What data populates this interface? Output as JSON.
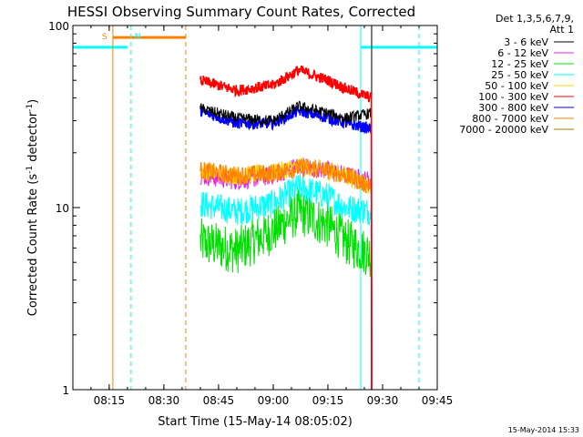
{
  "footer_timestamp": "15-May-2014 15:33",
  "chart_data": {
    "type": "line",
    "title": "HESSI Observing Summary Count Rates, Corrected",
    "xlabel": "Start Time (15-May-14 08:05:02)",
    "ylabel": "Corrected Count Rate (s^-1 detector^-1)",
    "ylabel_parts": [
      "Corrected Count Rate (s",
      "-1",
      " detector",
      "-1",
      ")"
    ],
    "y_scale": "log",
    "ylim": [
      1,
      100
    ],
    "xlim": [
      "08:05:02",
      "09:45:00"
    ],
    "x_ticks": [
      "08:15",
      "08:30",
      "08:45",
      "09:00",
      "09:15",
      "09:30",
      "09:45"
    ],
    "y_ticks": [
      "1",
      "10",
      "100"
    ],
    "grid": false,
    "legend_header": [
      "Det 1,3,5,6,7,9,",
      "Att 1"
    ],
    "legend_position": "right",
    "series": [
      {
        "name": "3 - 6 keV",
        "color": "#000000",
        "start": "08:40",
        "end": "09:27",
        "t": [
          "08:40",
          "08:50",
          "09:00",
          "09:07",
          "09:15",
          "09:20",
          "09:27"
        ],
        "y": [
          35,
          31,
          30,
          36,
          33,
          31,
          33
        ]
      },
      {
        "name": "6 - 12 keV",
        "color": "#e020e0",
        "start": "08:40",
        "end": "09:27",
        "t": [
          "08:40",
          "08:50",
          "09:00",
          "09:07",
          "09:15",
          "09:20",
          "09:27"
        ],
        "y": [
          15,
          14,
          15,
          17,
          16,
          15,
          14
        ]
      },
      {
        "name": "12 - 25 keV",
        "color": "#00e000",
        "start": "08:40",
        "end": "09:27",
        "t": [
          "08:40",
          "08:50",
          "09:00",
          "09:07",
          "09:15",
          "09:20",
          "09:27"
        ],
        "y": [
          6.5,
          5.8,
          7.5,
          9.5,
          8,
          6.5,
          5.5
        ]
      },
      {
        "name": "25 - 50 keV",
        "color": "#00ffff",
        "start": "08:40",
        "end": "09:27",
        "t": [
          "08:40",
          "08:50",
          "09:00",
          "09:07",
          "09:15",
          "09:20",
          "09:27"
        ],
        "y": [
          10.5,
          9.5,
          10.5,
          13,
          11.5,
          10,
          9.5
        ]
      },
      {
        "name": "50 - 100 keV",
        "color": "#ffd000",
        "start": "08:40",
        "end": "09:27",
        "t": [
          "08:40",
          "08:50",
          "09:00",
          "09:07",
          "09:15",
          "09:20",
          "09:27"
        ],
        "y": [
          16,
          15,
          15.5,
          17,
          16,
          15,
          13
        ]
      },
      {
        "name": "100 - 300 keV",
        "color": "#ff0000",
        "start": "08:40",
        "end": "09:27",
        "t": [
          "08:40",
          "08:50",
          "09:00",
          "09:07",
          "09:15",
          "09:20",
          "09:27"
        ],
        "y": [
          50,
          44,
          47,
          57,
          50,
          45,
          40
        ]
      },
      {
        "name": "300 - 800 keV",
        "color": "#0000ff",
        "start": "08:40",
        "end": "09:27",
        "t": [
          "08:40",
          "08:50",
          "09:00",
          "09:07",
          "09:15",
          "09:20",
          "09:27"
        ],
        "y": [
          34,
          29,
          29,
          34,
          31,
          29,
          27
        ]
      },
      {
        "name": "800 - 7000 keV",
        "color": "#ff8000",
        "start": "08:40",
        "end": "09:27",
        "t": [
          "08:40",
          "08:50",
          "09:00",
          "09:07",
          "09:15",
          "09:20",
          "09:27"
        ],
        "y": [
          16,
          15,
          15.5,
          16.5,
          16,
          15,
          13
        ]
      },
      {
        "name": "7000 - 20000 keV",
        "color": "#a07800",
        "start": "08:40",
        "end": "09:27",
        "t": [],
        "y": []
      }
    ],
    "attenuator_segments": [
      {
        "t0": "08:05:02",
        "t1": "08:20",
        "y": 76,
        "color": "#00ffff"
      },
      {
        "t0": "09:24",
        "t1": "09:45",
        "y": 76,
        "color": "#00ffff"
      },
      {
        "t0": "08:16",
        "t1": "08:36",
        "y": 86,
        "color": "#ff8000"
      }
    ],
    "vertical_markers": [
      {
        "t": "08:05:02",
        "color": "#00ffff",
        "style": "solid"
      },
      {
        "t": "08:16",
        "color": "#ff8000",
        "style": "solid"
      },
      {
        "t": "08:21",
        "color": "#00ffff",
        "style": "dashed"
      },
      {
        "t": "08:36",
        "color": "#ff8000",
        "style": "dashed"
      },
      {
        "t": "09:24",
        "color": "#00ffff",
        "style": "solid"
      },
      {
        "t": "09:27",
        "color": "#000000",
        "style": "solid"
      },
      {
        "t": "09:40",
        "color": "#00ffff",
        "style": "dashed"
      }
    ],
    "annotations": [
      {
        "text": "S",
        "t": "08:13",
        "color": "#ff8000"
      },
      {
        "text": "N",
        "t": "08:22",
        "color": "#00ffff"
      }
    ]
  }
}
